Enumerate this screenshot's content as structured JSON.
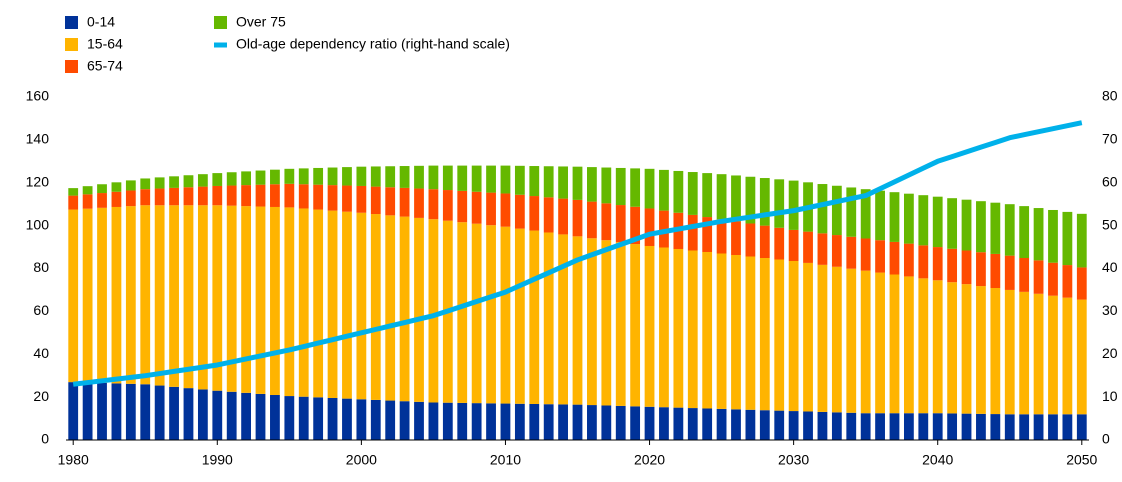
{
  "chart_data": {
    "type": "stacked-bar-line",
    "x": [
      1980,
      1981,
      1982,
      1983,
      1984,
      1985,
      1986,
      1987,
      1988,
      1989,
      1990,
      1991,
      1992,
      1993,
      1994,
      1995,
      1996,
      1997,
      1998,
      1999,
      2000,
      2001,
      2002,
      2003,
      2004,
      2005,
      2006,
      2007,
      2008,
      2009,
      2010,
      2011,
      2012,
      2013,
      2014,
      2015,
      2016,
      2017,
      2018,
      2019,
      2020,
      2021,
      2022,
      2023,
      2024,
      2025,
      2026,
      2027,
      2028,
      2029,
      2030,
      2031,
      2032,
      2033,
      2034,
      2035,
      2036,
      2037,
      2038,
      2039,
      2040,
      2041,
      2042,
      2043,
      2044,
      2045,
      2046,
      2047,
      2048,
      2049,
      2050
    ],
    "xlim": [
      1979.5,
      2050.5
    ],
    "xticks": [
      1980,
      1990,
      2000,
      2010,
      2020,
      2030,
      2040,
      2050
    ],
    "ylim": [
      0,
      160
    ],
    "yticks": [
      0,
      20,
      40,
      60,
      80,
      100,
      120,
      140,
      160
    ],
    "y2lim": [
      0,
      80
    ],
    "y2ticks": [
      0,
      10,
      20,
      30,
      40,
      50,
      60,
      70,
      80
    ],
    "series": [
      {
        "name": "0-14",
        "color": "#003299",
        "values": [
          27,
          26.8,
          26.6,
          26.4,
          26.2,
          26,
          25.4,
          24.8,
          24.2,
          23.6,
          23,
          22.5,
          22,
          21.5,
          21,
          20.5,
          20.2,
          19.9,
          19.6,
          19.3,
          19,
          18.7,
          18.4,
          18.1,
          17.8,
          17.5,
          17.4,
          17.3,
          17.2,
          17.1,
          17,
          16.9,
          16.8,
          16.7,
          16.6,
          16.5,
          16.3,
          16.1,
          15.9,
          15.7,
          15.5,
          15.3,
          15.1,
          14.9,
          14.7,
          14.5,
          14.3,
          14.1,
          13.9,
          13.7,
          13.5,
          13.3,
          13.1,
          12.9,
          12.7,
          12.5,
          12.5,
          12.5,
          12.5,
          12.5,
          12.5,
          12.4,
          12.3,
          12.2,
          12.1,
          12,
          12,
          12,
          12,
          12,
          12
        ]
      },
      {
        "name": "15-64",
        "color": "#FFB400",
        "values": [
          80.5,
          81.1,
          81.7,
          82.3,
          82.9,
          83.5,
          84.1,
          84.7,
          85.3,
          85.9,
          86.5,
          86.8,
          87.1,
          87.4,
          87.7,
          88,
          87.8,
          87.6,
          87.4,
          87.2,
          87,
          86.7,
          86.4,
          86.1,
          85.8,
          85.5,
          84.9,
          84.3,
          83.7,
          83.1,
          82.5,
          81.7,
          80.9,
          80.1,
          79.3,
          78.5,
          77.8,
          77.1,
          76.4,
          75.7,
          75,
          74.5,
          74,
          73.5,
          73,
          72.5,
          72,
          71.5,
          71,
          70.5,
          70,
          69.3,
          68.6,
          67.9,
          67.2,
          66.5,
          65.6,
          64.7,
          63.8,
          62.9,
          62,
          61.2,
          60.4,
          59.6,
          58.8,
          58,
          57.1,
          56.2,
          55.3,
          54.4,
          53.5
        ]
      },
      {
        "name": "65-74",
        "color": "#FF4B00",
        "values": [
          6.5,
          6.7,
          6.9,
          7.1,
          7.3,
          7.5,
          7.8,
          8.1,
          8.4,
          8.7,
          9,
          9.4,
          9.8,
          10.2,
          10.6,
          11,
          11.3,
          11.6,
          11.9,
          12.2,
          12.5,
          12.8,
          13.1,
          13.4,
          13.7,
          14,
          14.3,
          14.6,
          14.9,
          15.2,
          15.5,
          15.8,
          16.1,
          16.4,
          16.7,
          17,
          17.1,
          17.2,
          17.3,
          17.4,
          17.5,
          17.2,
          16.9,
          16.6,
          16.3,
          16,
          15.7,
          15.4,
          15.1,
          14.8,
          14.5,
          14.6,
          14.7,
          14.8,
          14.9,
          15,
          15.1,
          15.2,
          15.3,
          15.4,
          15.5,
          15.6,
          15.7,
          15.8,
          15.9,
          16,
          15.8,
          15.6,
          15.4,
          15.2,
          15
        ]
      },
      {
        "name": "Over 75",
        "color": "#65B800",
        "values": [
          3.5,
          3.8,
          4.1,
          4.4,
          4.7,
          5,
          5.2,
          5.4,
          5.6,
          5.8,
          6,
          6.2,
          6.4,
          6.6,
          6.8,
          7,
          7.4,
          7.8,
          8.2,
          8.6,
          9,
          9.4,
          9.8,
          10.2,
          10.6,
          11,
          11.4,
          11.8,
          12.2,
          12.6,
          13,
          13.5,
          14,
          14.5,
          15,
          15.5,
          16.1,
          16.7,
          17.3,
          17.9,
          18.5,
          19,
          19.5,
          20,
          20.5,
          21,
          21.4,
          21.8,
          22.2,
          22.6,
          23,
          23,
          23,
          23,
          23,
          23,
          23.1,
          23.2,
          23.3,
          23.4,
          23.5,
          23.6,
          23.7,
          23.8,
          23.9,
          24,
          24.2,
          24.4,
          24.6,
          24.8,
          25
        ]
      },
      {
        "name": "Old-age dependency ratio (right-hand scale)",
        "color": "#00B1EA",
        "axis": "y2",
        "values": [
          13,
          13.4,
          13.8,
          14.2,
          14.6,
          15,
          15.5,
          16,
          16.5,
          17,
          17.5,
          18.2,
          18.9,
          19.6,
          20.3,
          21,
          21.8,
          22.6,
          23.4,
          24.2,
          25,
          25.8,
          26.6,
          27.4,
          28.2,
          29,
          30.1,
          31.2,
          32.3,
          33.4,
          34.5,
          36,
          37.5,
          39,
          40.5,
          42,
          43.2,
          44.4,
          45.6,
          46.8,
          48,
          48.6,
          49.2,
          49.8,
          50.4,
          51,
          51.5,
          52,
          52.5,
          53,
          53.5,
          54.2,
          54.9,
          55.6,
          56.3,
          57,
          58.6,
          60.2,
          61.8,
          63.4,
          65,
          66.1,
          67.2,
          68.3,
          69.4,
          70.5,
          71.2,
          71.9,
          72.6,
          73.3,
          74
        ]
      }
    ]
  }
}
